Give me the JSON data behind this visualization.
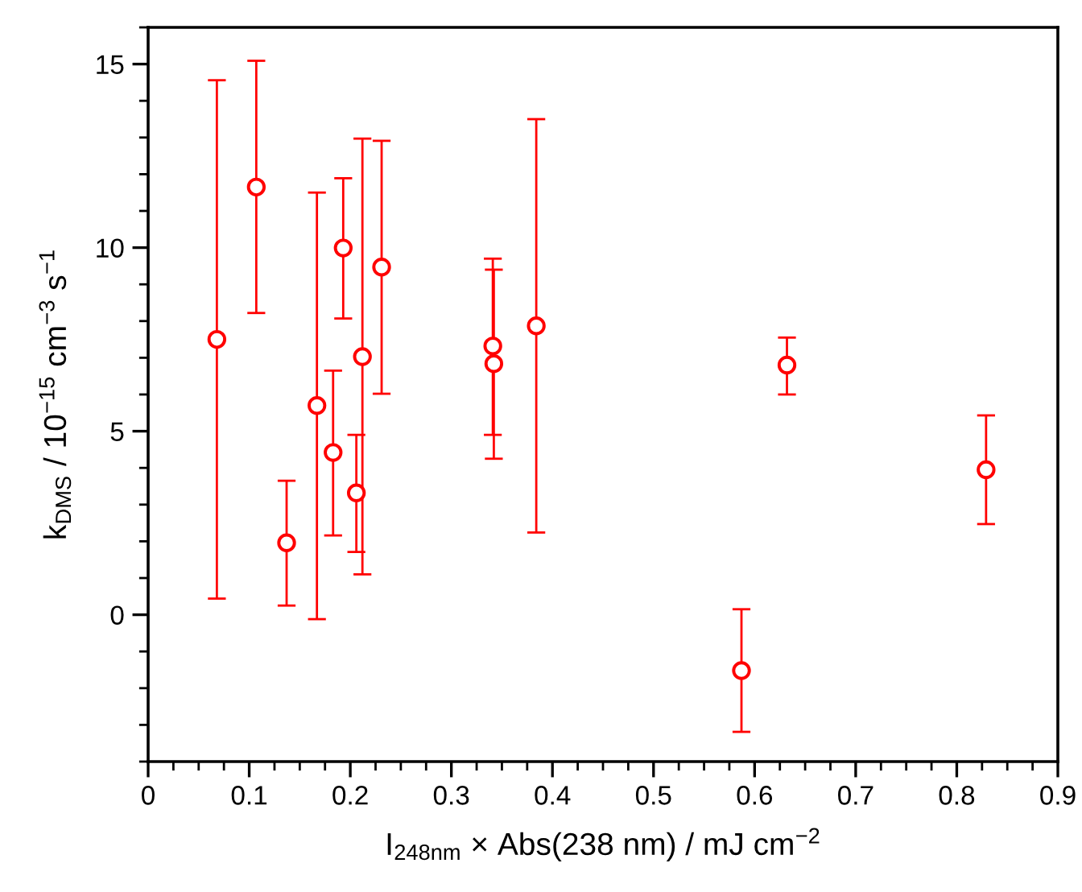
{
  "chart_data": {
    "type": "scatter",
    "xlabel": "I$_{248nm}$ × Abs(238 nm) / mJ cm$^{−2}$",
    "ylabel": "k$_{DMS}$ / 10$^{−15}$ cm$^{−3}$ s$^{−1}$",
    "x": [
      0.068,
      0.107,
      0.137,
      0.167,
      0.183,
      0.193,
      0.206,
      0.212,
      0.231,
      0.341,
      0.342,
      0.384,
      0.587,
      0.632,
      0.829
    ],
    "series": [
      {
        "color": "#ff0000",
        "values": [
          7.5,
          11.65,
          1.96,
          5.7,
          4.42,
          9.99,
          3.32,
          7.03,
          9.47,
          7.32,
          6.84,
          7.87,
          -1.52,
          6.8,
          3.95
        ],
        "errors": [
          [
            0.44,
            14.56
          ],
          [
            8.22,
            15.09
          ],
          [
            0.25,
            3.65
          ],
          [
            -0.12,
            11.5
          ],
          [
            2.16,
            6.65
          ],
          [
            8.07,
            11.89
          ],
          [
            1.71,
            4.9
          ],
          [
            1.1,
            12.97
          ],
          [
            6.02,
            12.91
          ],
          [
            4.9,
            9.7
          ],
          [
            4.25,
            9.4
          ],
          [
            2.24,
            13.5
          ],
          [
            -3.19,
            0.15
          ],
          [
            6.0,
            7.55
          ],
          [
            2.47,
            5.43
          ]
        ]
      }
    ],
    "xlim": [
      0,
      0.9
    ],
    "xticks": [
      0,
      0.1,
      0.2,
      0.3,
      0.4,
      0.5,
      0.6,
      0.7,
      0.8,
      0.9
    ],
    "ylim": [
      -4,
      16
    ],
    "yticks": [
      0,
      5,
      10,
      15
    ],
    "marker": "circle",
    "grid": false,
    "legend": false
  }
}
